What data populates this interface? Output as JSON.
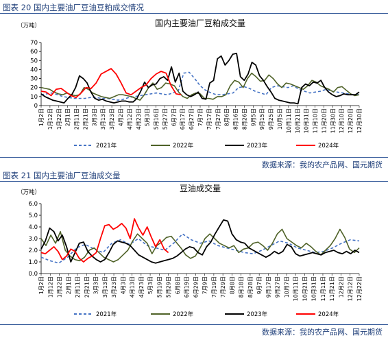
{
  "figures": [
    {
      "caption": "图表 20 国内主要油厂豆油豆粕成交情况",
      "source": "数据来源：我的农产品网、国元期货"
    },
    {
      "caption": "图表 21 国内主要油厂豆油成交量",
      "source": "数据来源：我的农产品网、国元期货"
    }
  ],
  "colors": {
    "2021年": "#4472c4",
    "2022年": "#4f6228",
    "2023年": "#000000",
    "2024年": "#ff0000",
    "rule": "#2f5597"
  },
  "chart_data": [
    {
      "type": "line",
      "title": "国内主要油厂豆粕成交量",
      "ylabel": "（万吨）",
      "ylim": [
        0,
        70
      ],
      "yticks": [
        0,
        10,
        20,
        30,
        40,
        50,
        60,
        70
      ],
      "grid": false,
      "legend_position": "bottom",
      "x_tick_labels": [
        "1月2日",
        "1月12日",
        "1月22日",
        "2月1日",
        "2月11日",
        "2月21日",
        "3月3日",
        "3月13日",
        "3月23日",
        "4月2日",
        "4月12日",
        "4月23日",
        "5月3日",
        "5月16日",
        "5月27日",
        "6月7日",
        "6月17日",
        "6月27日",
        "7月7日",
        "7月17日",
        "7月27日",
        "8月6日",
        "8月16日",
        "8月26日",
        "9月5日",
        "9月15日",
        "9月25日",
        "10月5日",
        "10月11日",
        "10月21日",
        "10月31日",
        "11月10日",
        "11月20日",
        "11月30日",
        "12月10日",
        "12月20日",
        "12月30日"
      ],
      "series": [
        {
          "name": "2021年",
          "values": [
            12,
            13,
            14,
            12,
            10,
            9,
            8,
            8,
            8,
            9,
            9,
            8,
            8,
            7,
            6,
            7,
            9,
            10,
            11,
            12,
            13,
            14,
            13,
            12,
            14,
            16,
            36,
            37,
            30,
            22,
            17,
            14,
            12,
            12,
            13,
            14,
            20,
            21,
            19,
            16,
            14,
            12,
            20,
            22,
            21,
            20,
            22,
            18,
            16,
            14,
            15,
            16,
            18,
            16,
            15,
            14,
            13,
            12,
            13
          ]
        },
        {
          "name": "2022年",
          "values": [
            20,
            19,
            18,
            15,
            13,
            12,
            14,
            12,
            11,
            12,
            20,
            18,
            14,
            12,
            10,
            9,
            8,
            10,
            12,
            12,
            11,
            10,
            8,
            6,
            12,
            20,
            25,
            18,
            20,
            25,
            24,
            22,
            15,
            10,
            8,
            12,
            14,
            13,
            8,
            8,
            7,
            10,
            10,
            12,
            22,
            28,
            26,
            20,
            30,
            36,
            32,
            27,
            28,
            34,
            30,
            24,
            20,
            25,
            24,
            22,
            20,
            18,
            22,
            28,
            26,
            22,
            20,
            18,
            15,
            20,
            21,
            17,
            13,
            11,
            12
          ]
        },
        {
          "name": "2023年",
          "values": [
            13,
            10,
            8,
            6,
            5,
            4,
            3,
            8,
            12,
            20,
            33,
            30,
            25,
            15,
            8,
            6,
            7,
            5,
            4,
            3,
            4,
            5,
            5,
            4,
            4,
            8,
            16,
            26,
            20,
            23,
            24,
            30,
            32,
            28,
            43,
            26,
            36,
            16,
            12,
            10,
            12,
            15,
            8,
            7,
            25,
            28,
            52,
            55,
            45,
            50,
            57,
            58,
            32,
            28,
            35,
            48,
            45,
            33,
            28,
            21,
            15,
            8,
            6,
            5,
            4,
            3,
            3,
            2,
            20,
            24,
            22,
            26,
            25,
            28,
            20,
            15,
            12,
            10,
            11,
            13,
            12,
            12,
            12,
            15
          ]
        },
        {
          "name": "2024年",
          "values": [
            16,
            15,
            11,
            18,
            19,
            15,
            11,
            9,
            14,
            20,
            19,
            25,
            35,
            38,
            41,
            35,
            25,
            14,
            12,
            16,
            20,
            23,
            30,
            35,
            38,
            36,
            22,
            13,
            12
          ]
        }
      ]
    },
    {
      "type": "line",
      "title": "豆油成交量",
      "ylabel": "（万吨）",
      "ylim": [
        0,
        6
      ],
      "yticks": [
        "0.0",
        "1.0",
        "2.0",
        "3.0",
        "4.0",
        "5.0",
        "6.0"
      ],
      "grid": false,
      "legend_position": "bottom",
      "x_tick_labels": [
        "1月2日",
        "1月12日",
        "1月22日",
        "2月1日",
        "2月11日",
        "2月21日",
        "3月3日",
        "3月13日",
        "3月23日",
        "4月3日",
        "4月13日",
        "4月23日",
        "5月3日",
        "5月19日",
        "5月29日",
        "6月8日",
        "6月19日",
        "6月29日",
        "7月9日",
        "7月19日",
        "7月29日",
        "8月8日",
        "8月18日",
        "8月28日",
        "9月7日",
        "9月17日",
        "9月27日",
        "10月7日",
        "10月11日",
        "10月21日",
        "10月31日",
        "11月11日",
        "11月21日",
        "12月2日",
        "12月12日",
        "12月22日"
      ],
      "series": [
        {
          "name": "2021年",
          "values": [
            1.4,
            1.1,
            0.9,
            1.4,
            2.2,
            2.5,
            2.1,
            1.8,
            2.6,
            2.9,
            2.5,
            3.0,
            2.4,
            2.2,
            2.0,
            2.6,
            3.4,
            2.9,
            2.6,
            2.8,
            2.4,
            2.2,
            2.0,
            1.8,
            1.7,
            2.0,
            2.4,
            2.8,
            2.6,
            2.2,
            2.0,
            1.8,
            1.9,
            2.2,
            2.6,
            2.9,
            2.8
          ]
        },
        {
          "name": "2022年",
          "values": [
            3.0,
            2.4,
            3.3,
            2.6,
            3.6,
            2.0,
            1.5,
            1.2,
            1.1,
            1.4,
            2.0,
            2.2,
            1.8,
            1.4,
            1.2,
            1.0,
            1.2,
            1.6,
            2.0,
            2.8,
            3.4,
            3.0,
            2.6,
            1.7,
            2.4,
            2.7,
            3.1,
            3.2,
            2.7,
            2.2,
            1.6,
            1.3,
            1.5,
            2.2,
            3.0,
            3.4,
            3.0,
            2.6,
            2.4,
            2.2,
            2.4,
            1.8,
            2.1,
            2.2,
            2.6,
            2.7,
            2.4,
            2.0,
            2.6,
            3.4,
            3.8,
            3.0,
            2.7,
            2.4,
            2.2,
            2.6,
            2.3,
            1.9,
            1.6,
            2.0,
            2.4,
            3.0,
            3.8,
            3.1,
            2.1,
            1.8,
            2.2
          ]
        },
        {
          "name": "2023年",
          "values": [
            2.1,
            2.8,
            3.9,
            3.6,
            2.8,
            3.3,
            2.3,
            1.0,
            1.8,
            2.6,
            2.7,
            1.9,
            1.5,
            1.2,
            1.0,
            1.2,
            1.8,
            2.5,
            2.8,
            2.7,
            2.6,
            2.4,
            2.0,
            1.6,
            1.4,
            1.2,
            1.0,
            0.9,
            1.0,
            1.1,
            1.2,
            1.3,
            1.5,
            1.8,
            2.1,
            2.3,
            2.2,
            1.8,
            1.6,
            2.3,
            2.7,
            3.4,
            4.0,
            4.6,
            4.5,
            3.4,
            2.9,
            2.7,
            2.6,
            2.2,
            2.0,
            1.8,
            1.6,
            1.4,
            1.6,
            1.9,
            1.7,
            1.9,
            2.5,
            2.3,
            1.7,
            1.5,
            1.6,
            1.7,
            1.8,
            1.7,
            1.6,
            1.8,
            1.9,
            2.0,
            1.8,
            1.7,
            1.9,
            1.7,
            2.0,
            1.8
          ]
        },
        {
          "name": "2024年",
          "values": [
            1.8,
            1.7,
            2.0,
            2.3,
            1.9,
            1.2,
            1.5,
            2.1,
            1.9,
            1.3,
            1.0,
            1.3,
            1.5,
            1.8,
            3.0,
            4.1,
            4.2,
            3.8,
            4.0,
            4.3,
            3.9,
            3.0,
            4.7,
            3.9,
            3.3,
            4.0,
            3.1,
            2.3,
            2.9,
            2.1,
            1.8
          ]
        }
      ]
    }
  ]
}
